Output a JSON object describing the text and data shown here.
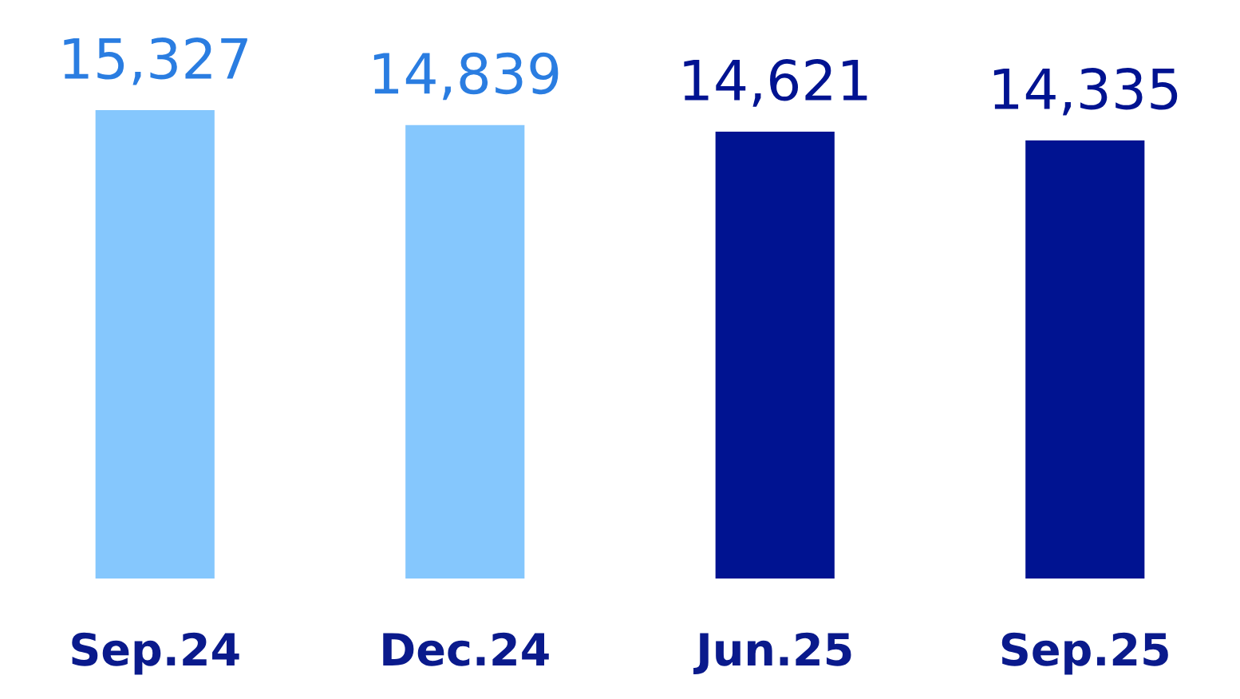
{
  "chart_data": {
    "type": "bar",
    "categories": [
      "Sep.24",
      "Dec.24",
      "Jun.25",
      "Sep.25"
    ],
    "values": [
      15327,
      14839,
      14621,
      14335
    ],
    "colors": [
      "#85c7fd",
      "#85c7fd",
      "#001391",
      "#001391"
    ],
    "value_labels": [
      "15,327",
      "14,839",
      "14,621",
      "14,335"
    ],
    "grid": false
  }
}
